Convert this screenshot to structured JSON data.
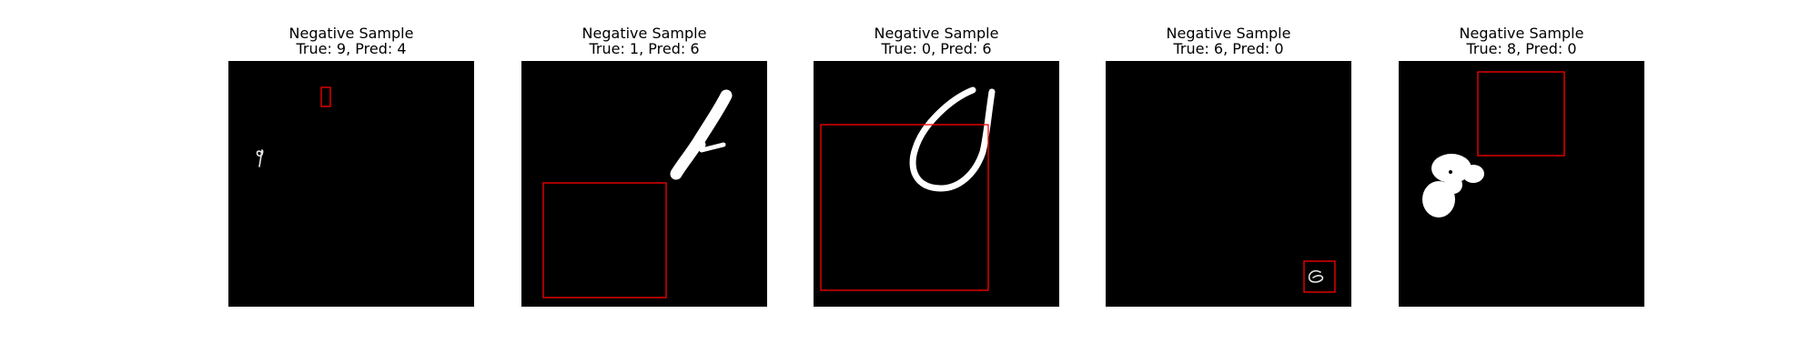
{
  "samples": [
    {
      "title": "Negative Sample",
      "subtitle": "True: 9, Pred: 4",
      "true_label": 9,
      "pred_label": 4
    },
    {
      "title": "Negative Sample",
      "subtitle": "True: 1, Pred: 6",
      "true_label": 1,
      "pred_label": 6
    },
    {
      "title": "Negative Sample",
      "subtitle": "True: 0, Pred: 6",
      "true_label": 0,
      "pred_label": 6
    },
    {
      "title": "Negative Sample",
      "subtitle": "True: 6, Pred: 0",
      "true_label": 6,
      "pred_label": 0
    },
    {
      "title": "Negative Sample",
      "subtitle": "True: 8, Pred: 0",
      "true_label": 8,
      "pred_label": 0
    }
  ],
  "colors": {
    "background": "#000000",
    "digit": "#ffffff",
    "box": "#ff0000"
  }
}
